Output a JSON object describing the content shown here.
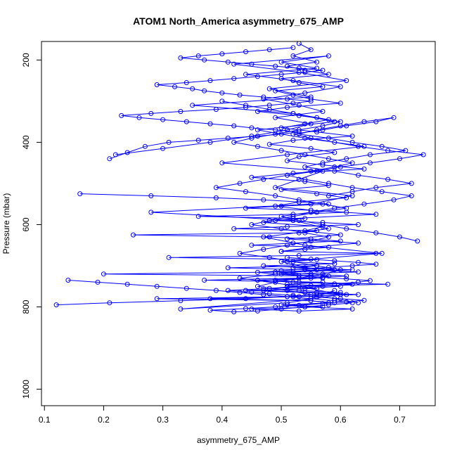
{
  "chart_data": {
    "type": "line",
    "title": "ATOM1 North_America asymmetry_675_AMP",
    "xlabel": "asymmetry_675_AMP",
    "ylabel": "Pressure (mbar)",
    "xlim": [
      0.095,
      0.76
    ],
    "ylim": [
      1040,
      155
    ],
    "y_inverted": true,
    "x_ticks": [
      0.1,
      0.2,
      0.3,
      0.4,
      0.5,
      0.6,
      0.7
    ],
    "x_tick_labels": [
      "0.1",
      "0.2",
      "0.3",
      "0.4",
      "0.5",
      "0.6",
      "0.7"
    ],
    "y_ticks": [
      200,
      400,
      600,
      800,
      1000
    ],
    "y_tick_labels": [
      "200",
      "400",
      "600",
      "800",
      "1000"
    ],
    "grid": false,
    "legend": "none",
    "color": "#0000ff",
    "marker": "open-circle",
    "series": [
      {
        "x": [
          0.53,
          0.55,
          0.52,
          0.56,
          0.51,
          0.54,
          0.58,
          0.5,
          0.53,
          0.57,
          0.49,
          0.52,
          0.55,
          0.6,
          0.51,
          0.46,
          0.53,
          0.58,
          0.54,
          0.5,
          0.56,
          0.62,
          0.52,
          0.48,
          0.55,
          0.59,
          0.53,
          0.51,
          0.57,
          0.64,
          0.52,
          0.45,
          0.54,
          0.58,
          0.5,
          0.56,
          0.61,
          0.53,
          0.49,
          0.55,
          0.66,
          0.52,
          0.47,
          0.57,
          0.54,
          0.6,
          0.51,
          0.63,
          0.55,
          0.5
        ],
        "y": [
          160,
          175,
          190,
          205,
          215,
          225,
          235,
          245,
          255,
          265,
          275,
          285,
          295,
          305,
          315,
          325,
          335,
          345,
          355,
          365,
          375,
          385,
          395,
          405,
          415,
          425,
          435,
          445,
          455,
          465,
          475,
          485,
          495,
          505,
          515,
          525,
          535,
          545,
          555,
          565,
          575,
          585,
          595,
          605,
          615,
          625,
          635,
          645,
          655,
          665
        ]
      },
      {
        "x": [
          0.22,
          0.3,
          0.38,
          0.45,
          0.51,
          0.55,
          0.49,
          0.57,
          0.53,
          0.47,
          0.54,
          0.6,
          0.52,
          0.44,
          0.56,
          0.5,
          0.58,
          0.42,
          0.53,
          0.61,
          0.48,
          0.55,
          0.35,
          0.52,
          0.59,
          0.46,
          0.54,
          0.64,
          0.51,
          0.4,
          0.57,
          0.53,
          0.49,
          0.62,
          0.55,
          0.28,
          0.52,
          0.58,
          0.47,
          0.54,
          0.67,
          0.5,
          0.56,
          0.43,
          0.53,
          0.6,
          0.51,
          0.33,
          0.55,
          0.59
        ],
        "y": [
          430,
          415,
          400,
          385,
          370,
          355,
          340,
          325,
          310,
          295,
          280,
          265,
          250,
          235,
          220,
          205,
          190,
          210,
          230,
          250,
          270,
          290,
          310,
          330,
          350,
          370,
          390,
          410,
          430,
          450,
          470,
          490,
          510,
          530,
          550,
          570,
          590,
          610,
          630,
          650,
          670,
          690,
          710,
          730,
          750,
          770,
          790,
          805,
          780,
          760
        ]
      },
      {
        "x": [
          0.16,
          0.28,
          0.39,
          0.47,
          0.53,
          0.58,
          0.5,
          0.44,
          0.55,
          0.61,
          0.52,
          0.36,
          0.54,
          0.49,
          0.57,
          0.63,
          0.51,
          0.42,
          0.56,
          0.53,
          0.25,
          0.48,
          0.55,
          0.6,
          0.52,
          0.45,
          0.58,
          0.54,
          0.5,
          0.66,
          0.53,
          0.31,
          0.56,
          0.51,
          0.59,
          0.47,
          0.54,
          0.62,
          0.52,
          0.2,
          0.55,
          0.57,
          0.49,
          0.53,
          0.68,
          0.51,
          0.56,
          0.44,
          0.54,
          0.6
        ],
        "y": [
          525,
          530,
          535,
          540,
          545,
          550,
          555,
          560,
          565,
          570,
          575,
          580,
          585,
          590,
          595,
          600,
          605,
          610,
          615,
          620,
          625,
          630,
          635,
          640,
          645,
          650,
          655,
          660,
          665,
          670,
          675,
          680,
          685,
          690,
          695,
          700,
          705,
          710,
          715,
          720,
          725,
          730,
          735,
          740,
          745,
          750,
          755,
          760,
          765,
          770
        ]
      },
      {
        "x": [
          0.12,
          0.21,
          0.33,
          0.44,
          0.51,
          0.56,
          0.6,
          0.53,
          0.48,
          0.57,
          0.62,
          0.52,
          0.46,
          0.55,
          0.58,
          0.5,
          0.63,
          0.54,
          0.41,
          0.56,
          0.52,
          0.59,
          0.49,
          0.55,
          0.61,
          0.53,
          0.37,
          0.57,
          0.51,
          0.6,
          0.54,
          0.47,
          0.56,
          0.63,
          0.52,
          0.29,
          0.55,
          0.58,
          0.5,
          0.54,
          0.62,
          0.53,
          0.45,
          0.57,
          0.51,
          0.59,
          0.55,
          0.38,
          0.53,
          0.61
        ],
        "y": [
          795,
          790,
          785,
          780,
          775,
          770,
          765,
          760,
          755,
          750,
          745,
          740,
          735,
          730,
          725,
          720,
          715,
          710,
          705,
          700,
          705,
          710,
          715,
          720,
          725,
          730,
          735,
          740,
          745,
          750,
          755,
          760,
          765,
          770,
          775,
          780,
          785,
          790,
          795,
          800,
          805,
          810,
          805,
          800,
          795,
          790,
          785,
          780,
          775,
          770
        ]
      },
      {
        "x": [
          0.73,
          0.7,
          0.66,
          0.61,
          0.57,
          0.53,
          0.5,
          0.55,
          0.59,
          0.64,
          0.69,
          0.72,
          0.67,
          0.62,
          0.58,
          0.54,
          0.51,
          0.56,
          0.6,
          0.65,
          0.7,
          0.74,
          0.68,
          0.63,
          0.59,
          0.55,
          0.52,
          0.57,
          0.61,
          0.66,
          0.69,
          0.64,
          0.6,
          0.56,
          0.53,
          0.58,
          0.62,
          0.67,
          0.71,
          0.65,
          0.61,
          0.57,
          0.54,
          0.59,
          0.63,
          0.68,
          0.72,
          0.66,
          0.62,
          0.58
        ],
        "y": [
          640,
          630,
          620,
          610,
          600,
          590,
          580,
          570,
          560,
          550,
          540,
          530,
          520,
          510,
          500,
          490,
          480,
          470,
          460,
          450,
          440,
          430,
          420,
          410,
          400,
          390,
          380,
          370,
          360,
          350,
          340,
          350,
          360,
          370,
          380,
          390,
          400,
          410,
          420,
          430,
          440,
          450,
          460,
          470,
          480,
          490,
          500,
          510,
          520,
          530
        ]
      },
      {
        "x": [
          0.21,
          0.24,
          0.27,
          0.31,
          0.36,
          0.41,
          0.46,
          0.5,
          0.53,
          0.49,
          0.45,
          0.42,
          0.38,
          0.34,
          0.3,
          0.26,
          0.23,
          0.28,
          0.33,
          0.39,
          0.44,
          0.48,
          0.52,
          0.55,
          0.51,
          0.47,
          0.43,
          0.4,
          0.37,
          0.35,
          0.32,
          0.29,
          0.34,
          0.38,
          0.42,
          0.46,
          0.5,
          0.54,
          0.57,
          0.53,
          0.49,
          0.45,
          0.41,
          0.37,
          0.33,
          0.36,
          0.4,
          0.44,
          0.48,
          0.52
        ],
        "y": [
          440,
          425,
          410,
          400,
          395,
          390,
          385,
          380,
          375,
          370,
          365,
          360,
          355,
          350,
          345,
          340,
          335,
          330,
          325,
          320,
          315,
          310,
          305,
          300,
          295,
          290,
          285,
          280,
          275,
          270,
          265,
          260,
          255,
          250,
          245,
          240,
          235,
          230,
          225,
          220,
          215,
          210,
          205,
          200,
          195,
          190,
          185,
          180,
          175,
          170
        ]
      },
      {
        "x": [
          0.14,
          0.19,
          0.24,
          0.29,
          0.34,
          0.39,
          0.43,
          0.47,
          0.51,
          0.55,
          0.59,
          0.62,
          0.58,
          0.54,
          0.5,
          0.46,
          0.42,
          0.38,
          0.44,
          0.49,
          0.53,
          0.57,
          0.61,
          0.64,
          0.6,
          0.56,
          0.52,
          0.48,
          0.45,
          0.41,
          0.47,
          0.51,
          0.55,
          0.59,
          0.63,
          0.65,
          0.61,
          0.57,
          0.53,
          0.49,
          0.46,
          0.5,
          0.54,
          0.58,
          0.62,
          0.66,
          0.63,
          0.59,
          0.55,
          0.51
        ],
        "y": [
          735,
          740,
          745,
          750,
          755,
          760,
          765,
          770,
          775,
          780,
          785,
          790,
          795,
          800,
          805,
          810,
          812,
          808,
          804,
          800,
          796,
          792,
          788,
          784,
          780,
          776,
          772,
          768,
          764,
          760,
          756,
          752,
          748,
          744,
          740,
          736,
          732,
          728,
          724,
          720,
          716,
          712,
          708,
          704,
          700,
          696,
          692,
          688,
          684,
          680
        ]
      },
      {
        "x": [
          0.4,
          0.44,
          0.48,
          0.52,
          0.56,
          0.6,
          0.57,
          0.53,
          0.49,
          0.45,
          0.42,
          0.46,
          0.5,
          0.54,
          0.58,
          0.62,
          0.59,
          0.55,
          0.51,
          0.47,
          0.43,
          0.39,
          0.44,
          0.49,
          0.53,
          0.57,
          0.61,
          0.56,
          0.52,
          0.48,
          0.45,
          0.5,
          0.54,
          0.58,
          0.55,
          0.51,
          0.47,
          0.43,
          0.48,
          0.52,
          0.56,
          0.6,
          0.57,
          0.53,
          0.49,
          0.46,
          0.51,
          0.55,
          0.59,
          0.63
        ],
        "y": [
          300,
          310,
          320,
          330,
          340,
          350,
          360,
          370,
          380,
          390,
          400,
          410,
          420,
          430,
          440,
          450,
          460,
          470,
          480,
          490,
          500,
          510,
          520,
          530,
          540,
          550,
          560,
          570,
          580,
          590,
          600,
          610,
          620,
          630,
          640,
          650,
          660,
          670,
          680,
          690,
          700,
          710,
          720,
          730,
          740,
          750,
          760,
          770,
          780,
          790
        ]
      }
    ]
  }
}
